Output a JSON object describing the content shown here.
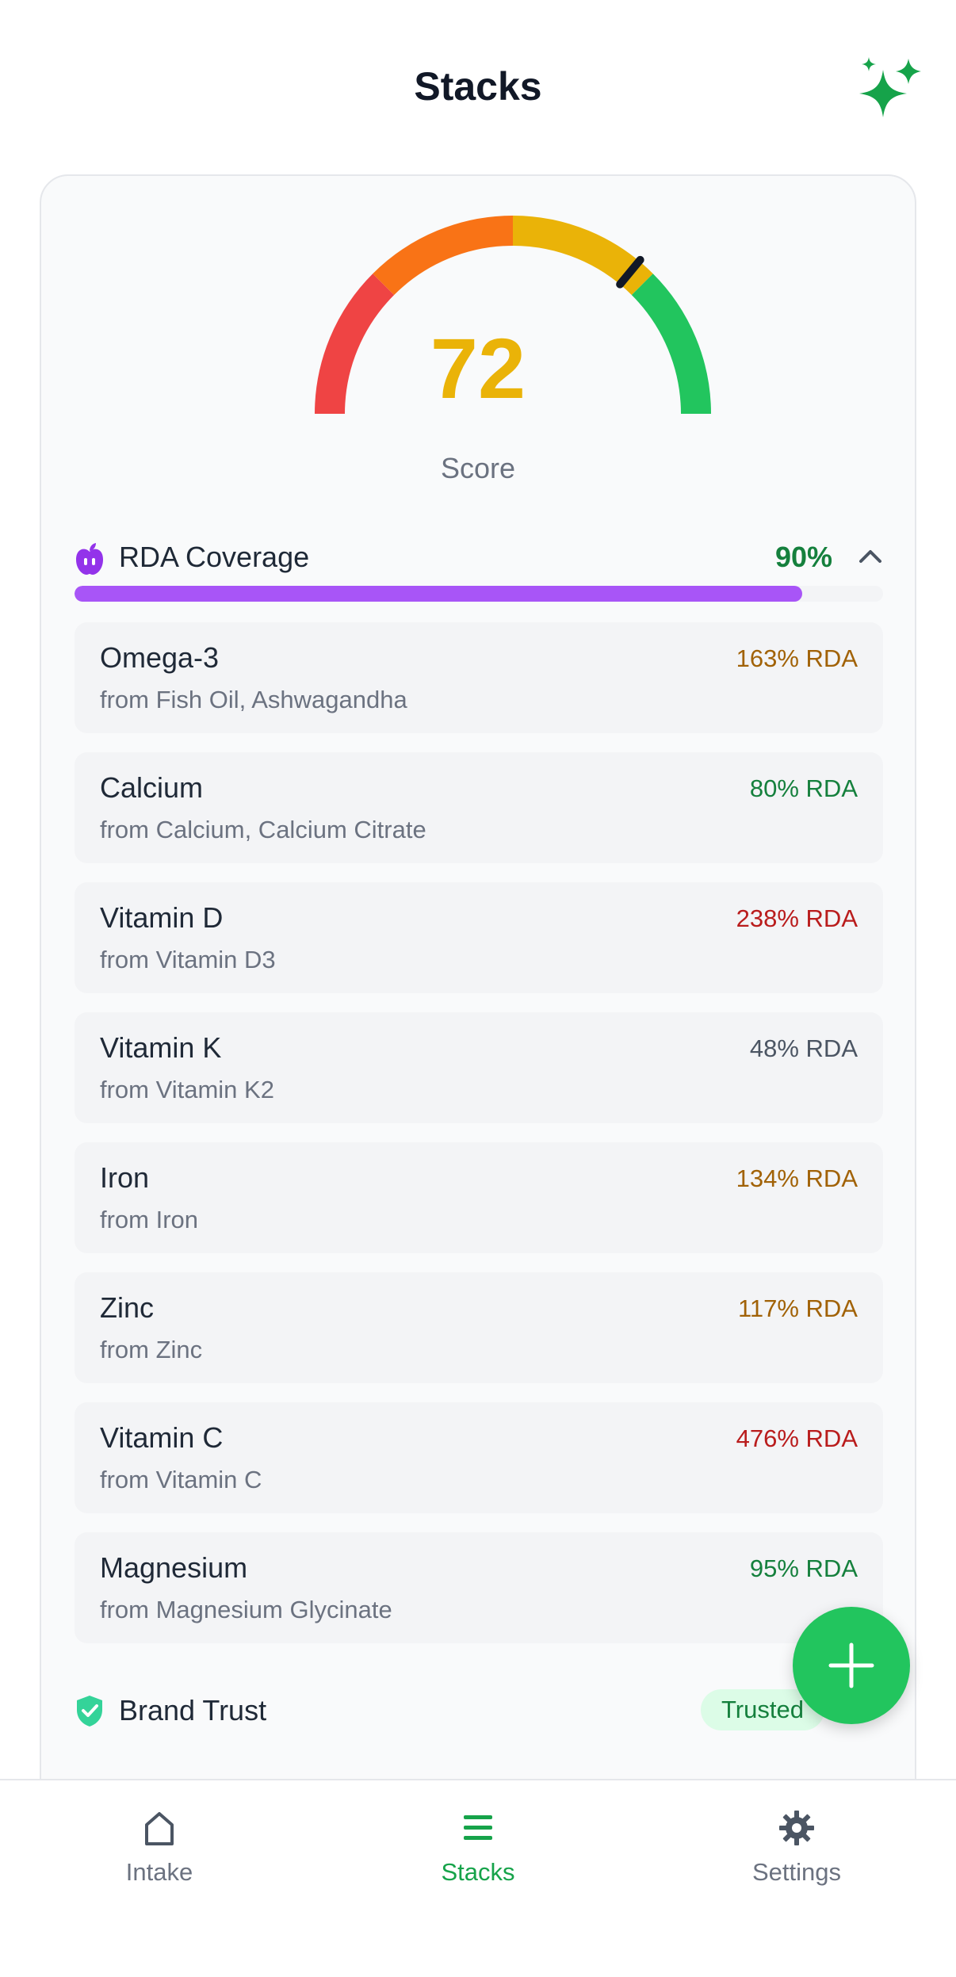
{
  "header": {
    "title": "Stacks",
    "action_icon": "sparkles-icon"
  },
  "score": {
    "value": "72",
    "label": "Score",
    "gauge_level": 72,
    "value_color": "#eab308"
  },
  "rda": {
    "icon": "apple-icon",
    "title": "RDA Coverage",
    "percent_label": "90%",
    "progress": 0.9,
    "items": [
      {
        "name": "Omega-3",
        "source": "from Fish Oil, Ashwagandha",
        "rda": "163% RDA",
        "color": "#a16207"
      },
      {
        "name": "Calcium",
        "source": "from Calcium, Calcium Citrate",
        "rda": "80% RDA",
        "color": "#15803d"
      },
      {
        "name": "Vitamin D",
        "source": "from Vitamin D3",
        "rda": "238% RDA",
        "color": "#b91c1c"
      },
      {
        "name": "Vitamin K",
        "source": "from Vitamin K2",
        "rda": "48% RDA",
        "color": "#4b5563"
      },
      {
        "name": "Iron",
        "source": "from Iron",
        "rda": "134% RDA",
        "color": "#a16207"
      },
      {
        "name": "Zinc",
        "source": "from Zinc",
        "rda": "117% RDA",
        "color": "#a16207"
      },
      {
        "name": "Vitamin C",
        "source": "from Vitamin C",
        "rda": "476% RDA",
        "color": "#b91c1c"
      },
      {
        "name": "Magnesium",
        "source": "from Magnesium Glycinate",
        "rda": "95% RDA",
        "color": "#15803d"
      }
    ]
  },
  "brand_trust": {
    "label": "Brand Trust",
    "badge": "Trusted",
    "icon": "shield-check-icon"
  },
  "fab": {
    "icon": "plus-icon"
  },
  "tabbar": {
    "tabs": [
      {
        "label": "Intake",
        "icon": "home-icon",
        "active": false
      },
      {
        "label": "Stacks",
        "icon": "stacks-icon",
        "active": true
      },
      {
        "label": "Settings",
        "icon": "gear-icon",
        "active": false
      }
    ]
  },
  "colors": {
    "accent": "#22c55e",
    "purple": "#a855f7"
  }
}
